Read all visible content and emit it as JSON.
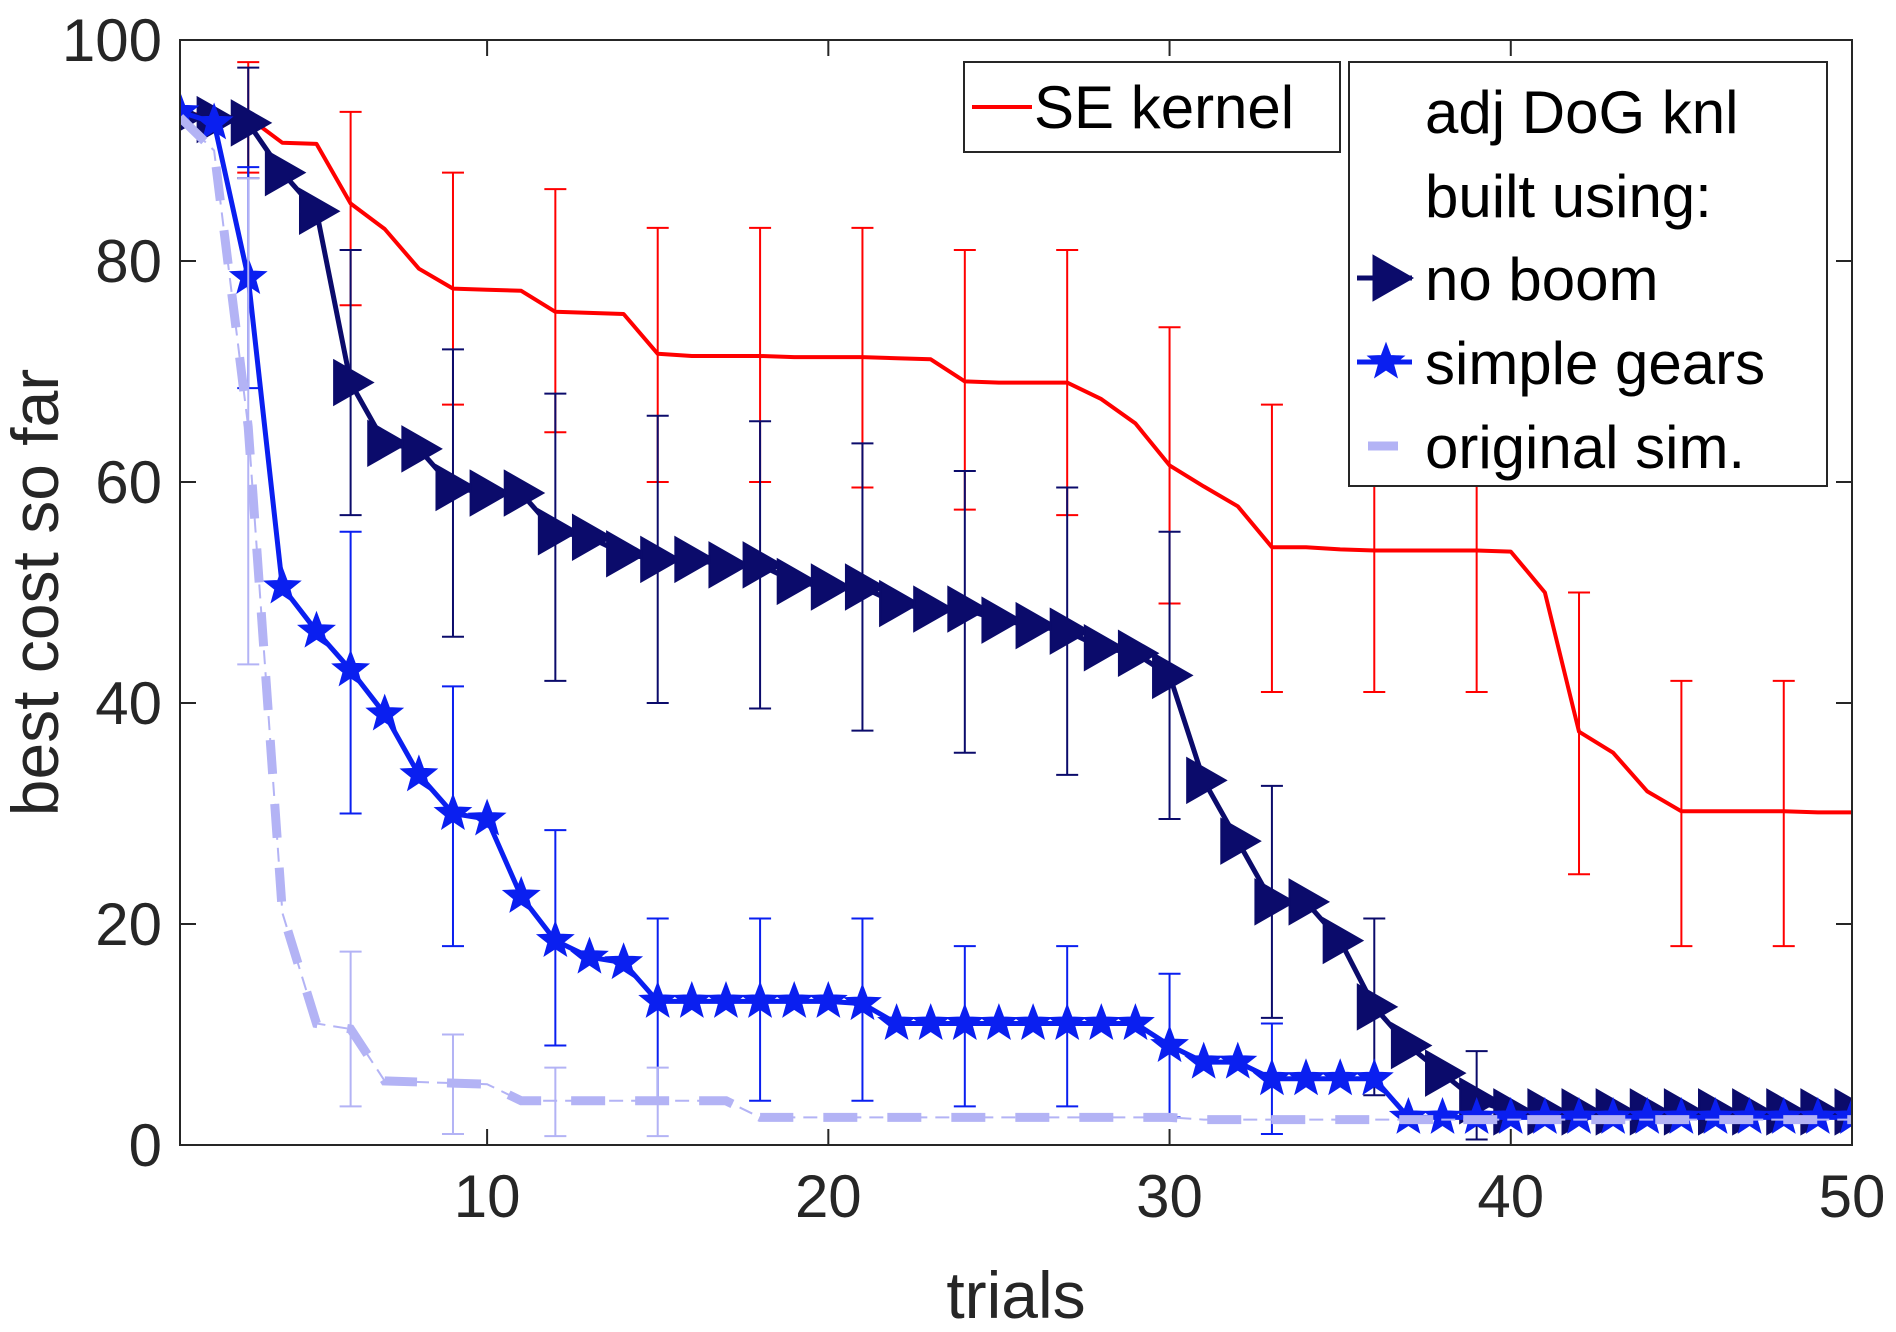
{
  "chart_data": {
    "type": "line",
    "title": "",
    "xlabel": "trials",
    "ylabel": "best cost so far",
    "xlim": [
      1,
      50
    ],
    "ylim": [
      0,
      100
    ],
    "x_ticks": [
      10,
      20,
      30,
      40,
      50
    ],
    "y_ticks": [
      0,
      20,
      40,
      60,
      80,
      100
    ],
    "grid": false,
    "legend": [
      {
        "location": "top-right",
        "title": "",
        "entries": [
          "SE kernel"
        ]
      },
      {
        "location": "top-right",
        "title": "adj DoG knl built using:",
        "entries": [
          "no boom",
          "simple gears",
          "original sim."
        ]
      }
    ],
    "series": [
      {
        "name": "SE kernel",
        "color": "#ff0000",
        "marker": "none",
        "x": [
          1,
          2,
          3,
          4,
          5,
          6,
          7,
          8,
          9,
          10,
          11,
          12,
          13,
          14,
          15,
          16,
          17,
          18,
          19,
          20,
          21,
          22,
          23,
          24,
          25,
          26,
          27,
          28,
          29,
          30,
          31,
          32,
          33,
          34,
          35,
          36,
          37,
          38,
          39,
          40,
          41,
          42,
          43,
          44,
          45,
          46,
          47,
          48,
          49,
          50
        ],
        "values": [
          93.5,
          93,
          93,
          90.7,
          90.6,
          85.2,
          82.9,
          79.3,
          77.5,
          77.4,
          77.3,
          75.4,
          75.3,
          75.2,
          71.6,
          71.4,
          71.4,
          71.4,
          71.3,
          71.3,
          71.3,
          71.2,
          71.1,
          69.1,
          69,
          69,
          69,
          67.5,
          65.3,
          61.5,
          59.6,
          57.8,
          54.1,
          54.1,
          53.9,
          53.8,
          53.8,
          53.8,
          53.8,
          53.7,
          50,
          37.4,
          35.5,
          32,
          30.2,
          30.2,
          30.2,
          30.2,
          30.1,
          30.1
        ],
        "errorbars": [
          {
            "x": 3,
            "low": 88,
            "high": 98
          },
          {
            "x": 6,
            "low": 76,
            "high": 93.5
          },
          {
            "x": 9,
            "low": 67,
            "high": 88
          },
          {
            "x": 12,
            "low": 64.5,
            "high": 86.5
          },
          {
            "x": 15,
            "low": 60,
            "high": 83
          },
          {
            "x": 18,
            "low": 60,
            "high": 83
          },
          {
            "x": 21,
            "low": 59.5,
            "high": 83
          },
          {
            "x": 24,
            "low": 57.5,
            "high": 81
          },
          {
            "x": 27,
            "low": 57,
            "high": 81
          },
          {
            "x": 30,
            "low": 49,
            "high": 74
          },
          {
            "x": 33,
            "low": 41,
            "high": 67
          },
          {
            "x": 36,
            "low": 41,
            "high": 67
          },
          {
            "x": 39,
            "low": 41,
            "high": 66.5
          },
          {
            "x": 42,
            "low": 24.5,
            "high": 50
          },
          {
            "x": 45,
            "low": 18,
            "high": 42
          },
          {
            "x": 48,
            "low": 18,
            "high": 42
          }
        ]
      },
      {
        "name": "no boom",
        "color": "#0b0b6b",
        "marker": "triangle-right",
        "x": [
          1,
          2,
          3,
          4,
          5,
          6,
          7,
          8,
          9,
          10,
          11,
          12,
          13,
          14,
          15,
          16,
          17,
          18,
          19,
          20,
          21,
          22,
          23,
          24,
          25,
          26,
          27,
          28,
          29,
          30,
          31,
          32,
          33,
          34,
          35,
          36,
          37,
          38,
          39,
          40,
          41,
          42,
          43,
          44,
          45,
          46,
          47,
          48,
          49,
          50
        ],
        "values": [
          93,
          92.8,
          92.5,
          88,
          84.5,
          69,
          63.5,
          63,
          59.5,
          59,
          59,
          55.5,
          55,
          53.5,
          53,
          53,
          52.5,
          52.5,
          51,
          50.5,
          50.5,
          49,
          48.5,
          48.5,
          47.5,
          47,
          46.5,
          45,
          44.5,
          42.5,
          33,
          27.5,
          22,
          22,
          18.5,
          12.5,
          9,
          6.5,
          4,
          3,
          3,
          3,
          3,
          3,
          3,
          3,
          3,
          3,
          3,
          3
        ],
        "errorbars": [
          {
            "x": 3,
            "low": 87.5,
            "high": 97.5
          },
          {
            "x": 6,
            "low": 57,
            "high": 81
          },
          {
            "x": 9,
            "low": 46,
            "high": 72
          },
          {
            "x": 12,
            "low": 42,
            "high": 68
          },
          {
            "x": 15,
            "low": 40,
            "high": 66
          },
          {
            "x": 18,
            "low": 39.5,
            "high": 65.5
          },
          {
            "x": 21,
            "low": 37.5,
            "high": 63.5
          },
          {
            "x": 24,
            "low": 35.5,
            "high": 61
          },
          {
            "x": 27,
            "low": 33.5,
            "high": 59.5
          },
          {
            "x": 30,
            "low": 29.5,
            "high": 55.5
          },
          {
            "x": 33,
            "low": 11.5,
            "high": 32.5
          },
          {
            "x": 36,
            "low": 4.5,
            "high": 20.5
          },
          {
            "x": 39,
            "low": 0.5,
            "high": 8.5
          }
        ]
      },
      {
        "name": "simple gears",
        "color": "#0a1ff0",
        "marker": "star",
        "x": [
          1,
          2,
          3,
          4,
          5,
          6,
          7,
          8,
          9,
          10,
          11,
          12,
          13,
          14,
          15,
          16,
          17,
          18,
          19,
          20,
          21,
          22,
          23,
          24,
          25,
          26,
          27,
          28,
          29,
          30,
          31,
          32,
          33,
          34,
          35,
          36,
          37,
          38,
          39,
          40,
          41,
          42,
          43,
          44,
          45,
          46,
          47,
          48,
          49,
          50
        ],
        "values": [
          93.5,
          92.5,
          78.5,
          50.5,
          46.5,
          43,
          39,
          33.5,
          30,
          29.5,
          22.5,
          18.5,
          17,
          16.5,
          13,
          13,
          13,
          13,
          13,
          13,
          12.8,
          11,
          11,
          11,
          11,
          11,
          11,
          11,
          11,
          9,
          7.5,
          7.5,
          6,
          6,
          6,
          6,
          2.5,
          2.5,
          2.5,
          2.5,
          2.5,
          2.5,
          2.5,
          2.5,
          2.5,
          2.5,
          2.5,
          2.5,
          2.5,
          2.5
        ],
        "errorbars": [
          {
            "x": 3,
            "low": 68.5,
            "high": 88.5
          },
          {
            "x": 6,
            "low": 30,
            "high": 55.5
          },
          {
            "x": 9,
            "low": 18,
            "high": 41.5
          },
          {
            "x": 12,
            "low": 9,
            "high": 28.5
          },
          {
            "x": 15,
            "low": 4,
            "high": 20.5
          },
          {
            "x": 18,
            "low": 4,
            "high": 20.5
          },
          {
            "x": 21,
            "low": 4,
            "high": 20.5
          },
          {
            "x": 24,
            "low": 3.5,
            "high": 18
          },
          {
            "x": 27,
            "low": 3.5,
            "high": 18
          },
          {
            "x": 30,
            "low": 2.5,
            "high": 15.5
          },
          {
            "x": 33,
            "low": 1,
            "high": 11
          }
        ]
      },
      {
        "name": "original sim.",
        "color": "#b3b3f5",
        "marker": "none",
        "line_style": "dashed",
        "x": [
          1,
          2,
          3,
          4,
          5,
          6,
          7,
          8,
          9,
          10,
          11,
          12,
          13,
          14,
          15,
          16,
          17,
          18,
          19,
          20,
          21,
          22,
          23,
          24,
          25,
          26,
          27,
          28,
          29,
          30,
          31,
          32,
          33,
          34,
          35,
          36,
          37,
          38,
          39,
          40,
          41,
          42,
          43,
          44,
          45,
          46,
          47,
          48,
          49,
          50
        ],
        "values": [
          93,
          90,
          65,
          21,
          11,
          10.5,
          5.8,
          5.7,
          5.6,
          5.5,
          4,
          4,
          4,
          4,
          4,
          4,
          4,
          2.5,
          2.5,
          2.5,
          2.5,
          2.5,
          2.5,
          2.5,
          2.5,
          2.5,
          2.5,
          2.5,
          2.5,
          2.5,
          2.3,
          2.3,
          2.3,
          2.3,
          2.3,
          2.3,
          2.3,
          2.3,
          2.3,
          2.3,
          2.3,
          2.3,
          2.3,
          2.3,
          2.3,
          2.3,
          2.3,
          2.3,
          2.3,
          2.3
        ],
        "errorbars": [
          {
            "x": 3,
            "low": 43.5,
            "high": 87.5
          },
          {
            "x": 6,
            "low": 3.5,
            "high": 17.5
          },
          {
            "x": 9,
            "low": 1,
            "high": 10
          },
          {
            "x": 12,
            "low": 0.8,
            "high": 7
          },
          {
            "x": 15,
            "low": 0.8,
            "high": 7
          }
        ]
      }
    ]
  }
}
